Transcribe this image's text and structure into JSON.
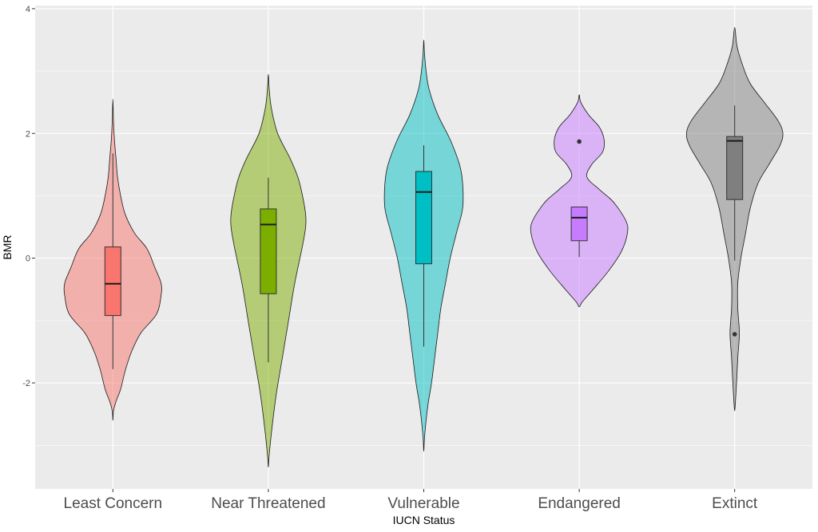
{
  "chart_data": {
    "type": "violin",
    "xlabel": "IUCN Status",
    "ylabel": "BMR",
    "ylim": [
      -3.7,
      4.05
    ],
    "yticks": [
      -2,
      0,
      2,
      4
    ],
    "yticks_minor": [
      -3,
      -1,
      1,
      3
    ],
    "grid": true,
    "panel_background": "#ebebeb",
    "grid_color": "#ffffff",
    "categories": [
      "Least Concern",
      "Near Threatened",
      "Vulnerable",
      "Endangered",
      "Extinct"
    ],
    "series": [
      {
        "category": "Least Concern",
        "color": "#F8766D",
        "violin": {
          "y": [
            -2.6,
            -2.45,
            -2.3,
            -2.1,
            -1.8,
            -1.5,
            -1.2,
            -0.9,
            -0.6,
            -0.4,
            -0.15,
            0.15,
            0.4,
            0.7,
            1.0,
            1.3,
            1.6,
            1.9,
            2.2,
            2.55
          ],
          "width": [
            0.0,
            0.004,
            0.02,
            0.05,
            0.08,
            0.12,
            0.18,
            0.28,
            0.31,
            0.31,
            0.27,
            0.22,
            0.14,
            0.08,
            0.05,
            0.03,
            0.02,
            0.01,
            0.004,
            0.0
          ]
        },
        "box": {
          "whisker_low": -1.78,
          "q1": -0.92,
          "median": -0.41,
          "q3": 0.18,
          "whisker_high": 1.68
        },
        "outliers": []
      },
      {
        "category": "Near Threatened",
        "color": "#7CAE00",
        "violin": {
          "y": [
            -3.35,
            -3.2,
            -2.8,
            -2.2,
            -1.6,
            -1.0,
            -0.4,
            0.2,
            0.5,
            0.7,
            1.0,
            1.3,
            1.6,
            2.0,
            2.4,
            2.7,
            2.95
          ],
          "width": [
            0.0,
            0.004,
            0.02,
            0.05,
            0.09,
            0.13,
            0.17,
            0.22,
            0.24,
            0.24,
            0.22,
            0.19,
            0.14,
            0.06,
            0.02,
            0.006,
            0.0
          ]
        },
        "box": {
          "whisker_low": -1.67,
          "q1": -0.57,
          "median": 0.54,
          "q3": 0.79,
          "whisker_high": 1.29
        },
        "outliers": []
      },
      {
        "category": "Vulnerable",
        "color": "#00BFC4",
        "violin": {
          "y": [
            -3.1,
            -2.9,
            -2.6,
            -2.3,
            -2.0,
            -1.6,
            -1.2,
            -0.8,
            -0.4,
            0.0,
            0.4,
            0.8,
            1.2,
            1.5,
            1.9,
            2.3,
            2.7,
            3.0,
            3.3,
            3.5
          ],
          "width": [
            0.0,
            0.004,
            0.015,
            0.03,
            0.05,
            0.07,
            0.09,
            0.11,
            0.14,
            0.17,
            0.21,
            0.25,
            0.25,
            0.23,
            0.17,
            0.09,
            0.035,
            0.015,
            0.004,
            0.0
          ]
        },
        "box": {
          "whisker_low": -1.42,
          "q1": -0.09,
          "median": 1.06,
          "q3": 1.39,
          "whisker_high": 1.81
        },
        "outliers": []
      },
      {
        "category": "Endangered",
        "color": "#C77CFF",
        "violin": {
          "y": [
            -0.78,
            -0.7,
            -0.5,
            -0.2,
            0.1,
            0.4,
            0.6,
            0.9,
            1.1,
            1.3,
            1.5,
            1.7,
            1.9,
            2.1,
            2.3,
            2.5,
            2.62
          ],
          "width": [
            0.0,
            0.02,
            0.09,
            0.19,
            0.27,
            0.31,
            0.3,
            0.22,
            0.13,
            0.05,
            0.08,
            0.15,
            0.16,
            0.13,
            0.06,
            0.01,
            0.0
          ]
        },
        "box": {
          "whisker_low": 0.02,
          "q1": 0.28,
          "median": 0.65,
          "q3": 0.82,
          "whisker_high": 0.82
        },
        "outliers": [
          1.87
        ]
      },
      {
        "category": "Extinct",
        "color": "#7F7F7F",
        "violin": {
          "y": [
            -2.45,
            -2.3,
            -2.0,
            -1.6,
            -1.2,
            -0.8,
            -0.4,
            0.0,
            0.4,
            0.8,
            1.2,
            1.5,
            1.8,
            2.0,
            2.2,
            2.5,
            2.8,
            3.1,
            3.4,
            3.7
          ],
          "width": [
            0.0,
            0.005,
            0.012,
            0.02,
            0.03,
            0.02,
            0.02,
            0.04,
            0.07,
            0.1,
            0.15,
            0.22,
            0.29,
            0.31,
            0.28,
            0.19,
            0.1,
            0.05,
            0.015,
            0.0
          ]
        },
        "box": {
          "whisker_low": -0.04,
          "q1": 0.94,
          "median": 1.88,
          "q3": 1.95,
          "whisker_high": 2.45
        },
        "outliers": [
          -1.22
        ]
      }
    ]
  }
}
